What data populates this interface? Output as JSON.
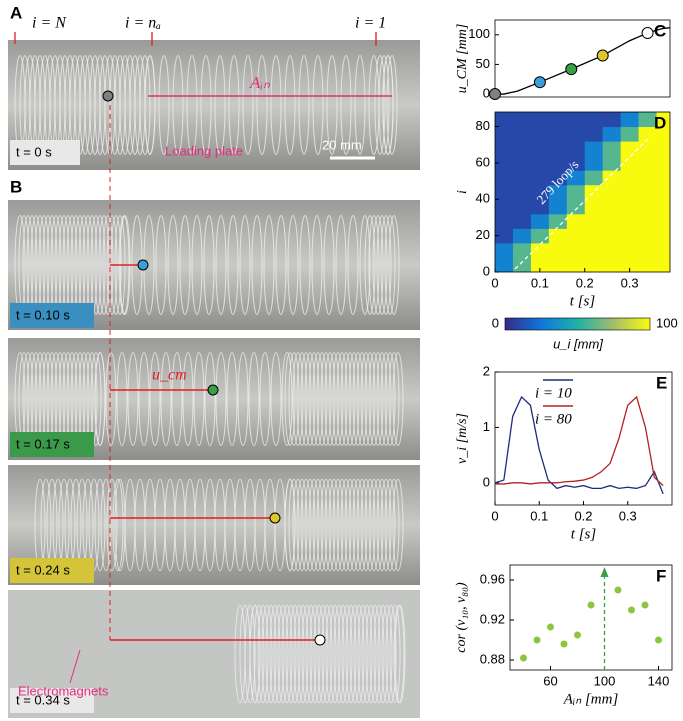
{
  "photos": {
    "label_a": "A",
    "label_b": "B",
    "i_n": "i = N",
    "i_na": "i = nₐ",
    "i_1": "i = 1",
    "a_in": "Aᵢₙ",
    "scale": "20 mm",
    "loading_plate": "Loading plate",
    "u_cm": "u_cm",
    "electromagnets": "Electromagnets",
    "times": [
      "t = 0 s",
      "t = 0.10 s",
      "t = 0.17 s",
      "t = 0.24 s",
      "t = 0.34 s"
    ]
  },
  "chart_data": [
    {
      "type": "line",
      "label": "C",
      "ylabel": "u_CM [mm]",
      "x": [
        0,
        0.02,
        0.05,
        0.1,
        0.17,
        0.24,
        0.3,
        0.34,
        0.37,
        0.39
      ],
      "values": [
        0,
        0,
        5,
        20,
        42,
        65,
        90,
        103,
        110,
        112
      ],
      "color": "#000000",
      "markers": {
        "x": [
          0,
          0.1,
          0.17,
          0.24,
          0.34
        ],
        "values": [
          0,
          20,
          42,
          65,
          103
        ],
        "colors": [
          "#808080",
          "#3a9fd6",
          "#3aa048",
          "#e0c62e",
          "#ffffff"
        ]
      },
      "xlim": [
        0,
        0.39
      ],
      "ylim": [
        -5,
        125
      ],
      "yticks": [
        0,
        50,
        100
      ]
    },
    {
      "type": "heatmap",
      "label": "D",
      "xlabel": "t [s]",
      "ylabel": "i",
      "x": [
        0.02,
        0.06,
        0.1,
        0.14,
        0.18,
        0.22,
        0.26,
        0.3,
        0.34,
        0.38
      ],
      "y": [
        4,
        12,
        20,
        28,
        36,
        44,
        52,
        60,
        68,
        76,
        84,
        92
      ],
      "values": [
        [
          30,
          60,
          100,
          100,
          100,
          100,
          100,
          100,
          100,
          100
        ],
        [
          30,
          60,
          100,
          100,
          100,
          100,
          100,
          100,
          100,
          100
        ],
        [
          10,
          30,
          60,
          100,
          100,
          100,
          100,
          100,
          100,
          100
        ],
        [
          10,
          10,
          30,
          60,
          100,
          100,
          100,
          100,
          100,
          100
        ],
        [
          10,
          10,
          10,
          30,
          60,
          100,
          100,
          100,
          100,
          100
        ],
        [
          10,
          10,
          10,
          30,
          60,
          100,
          100,
          100,
          100,
          100
        ],
        [
          10,
          10,
          10,
          10,
          30,
          60,
          100,
          100,
          100,
          100
        ],
        [
          10,
          10,
          10,
          10,
          10,
          30,
          60,
          100,
          100,
          100
        ],
        [
          10,
          10,
          10,
          10,
          10,
          30,
          60,
          100,
          100,
          100
        ],
        [
          10,
          10,
          10,
          10,
          10,
          10,
          30,
          60,
          100,
          100
        ],
        [
          10,
          10,
          10,
          10,
          10,
          10,
          10,
          30,
          60,
          100
        ],
        [
          10,
          10,
          10,
          10,
          10,
          10,
          10,
          10,
          30,
          60
        ]
      ],
      "xlim": [
        0,
        0.39
      ],
      "ylim": [
        0,
        88
      ],
      "xticks": [
        0,
        0.1,
        0.2,
        0.3
      ],
      "yticks": [
        0,
        20,
        40,
        60,
        80
      ],
      "clim": [
        0,
        100
      ],
      "cticks": [
        0,
        100
      ],
      "clabel": "u_i [mm]",
      "annotation": "279 loop/s"
    },
    {
      "type": "line",
      "label": "E",
      "xlabel": "t [s]",
      "ylabel": "v_i [m/s]",
      "x": [
        0,
        0.02,
        0.04,
        0.06,
        0.08,
        0.1,
        0.12,
        0.14,
        0.16,
        0.18,
        0.2,
        0.22,
        0.24,
        0.26,
        0.28,
        0.3,
        0.32,
        0.34,
        0.36,
        0.38
      ],
      "series": [
        {
          "name": "i = 10",
          "color": "#1f2a80",
          "values": [
            0,
            0.05,
            1.2,
            1.55,
            1.4,
            0.6,
            0.05,
            -0.1,
            -0.05,
            -0.08,
            -0.05,
            -0.1,
            -0.1,
            -0.05,
            -0.1,
            -0.08,
            -0.1,
            -0.05,
            0.2,
            -0.2
          ]
        },
        {
          "name": "i = 80",
          "color": "#b22222",
          "values": [
            -0.02,
            -0.02,
            0,
            0,
            -0.02,
            0,
            0,
            0,
            0.02,
            0.03,
            0.05,
            0.1,
            0.2,
            0.35,
            0.8,
            1.4,
            1.55,
            1.0,
            0.1,
            -0.05
          ]
        }
      ],
      "xlim": [
        0,
        0.4
      ],
      "ylim": [
        -0.4,
        2
      ],
      "xticks": [
        0,
        0.1,
        0.2,
        0.3
      ],
      "yticks": [
        0,
        1,
        2
      ]
    },
    {
      "type": "scatter",
      "label": "F",
      "xlabel": "Aᵢₙ [mm]",
      "ylabel": "cor (v₁₀, v₈₀)",
      "x": [
        40,
        50,
        60,
        70,
        80,
        90,
        110,
        120,
        130,
        140
      ],
      "values": [
        0.882,
        0.9,
        0.913,
        0.896,
        0.905,
        0.935,
        0.95,
        0.93,
        0.935,
        0.9
      ],
      "color": "#8cc63f",
      "vline": 100,
      "xlim": [
        30,
        150
      ],
      "ylim": [
        0.87,
        0.975
      ],
      "xticks": [
        60,
        100,
        140
      ],
      "yticks": [
        0.88,
        0.92,
        0.96
      ]
    }
  ]
}
